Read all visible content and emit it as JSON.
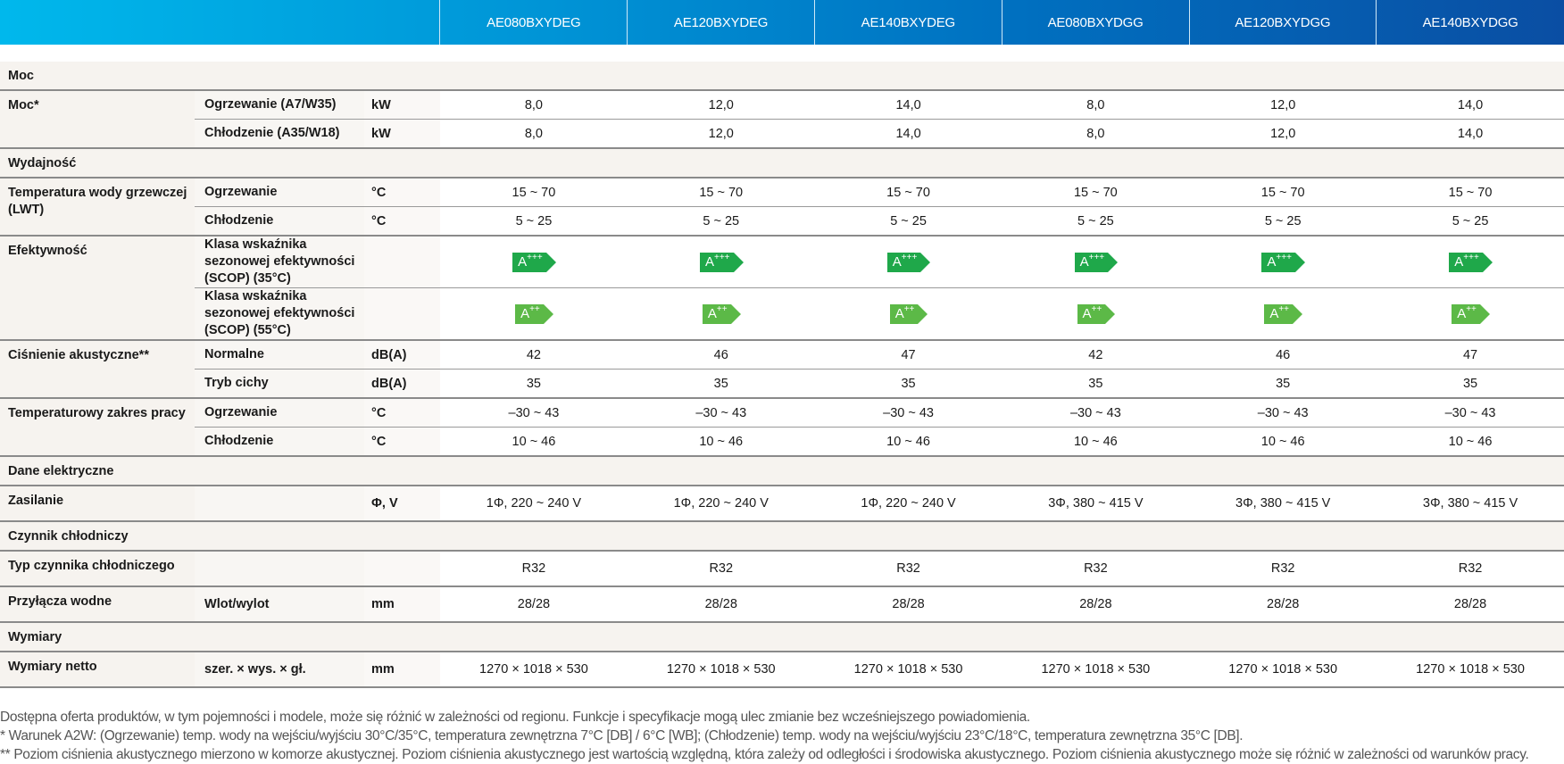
{
  "models": [
    "AE080BXYDEG",
    "AE120BXYDEG",
    "AE140BXYDEG",
    "AE080BXYDGG",
    "AE120BXYDGG",
    "AE140BXYDGG"
  ],
  "colors": {
    "header_start": "#00b8ec",
    "header_end": "#0a4ea3",
    "badge_a3": "#1fa84a",
    "badge_a2": "#5cb947",
    "section_bg": "#f6f3ef"
  },
  "sections": [
    {
      "title": "Moc",
      "groups": [
        {
          "label": "Moc*",
          "rows": [
            {
              "sub": "Ogrzewanie (A7/W35)",
              "unit": "kW",
              "values": [
                "8,0",
                "12,0",
                "14,0",
                "8,0",
                "12,0",
                "14,0"
              ]
            },
            {
              "sub": "Chłodzenie (A35/W18)",
              "unit": "kW",
              "values": [
                "8,0",
                "12,0",
                "14,0",
                "8,0",
                "12,0",
                "14,0"
              ]
            }
          ]
        }
      ]
    },
    {
      "title": "Wydajność",
      "groups": [
        {
          "label": "Temperatura wody grzewczej (LWT)",
          "rows": [
            {
              "sub": "Ogrzewanie",
              "unit": "°C",
              "values": [
                "15 ~ 70",
                "15 ~ 70",
                "15 ~ 70",
                "15 ~ 70",
                "15 ~ 70",
                "15 ~ 70"
              ]
            },
            {
              "sub": "Chłodzenie",
              "unit": "°C",
              "values": [
                "5 ~ 25",
                "5 ~ 25",
                "5 ~ 25",
                "5 ~ 25",
                "5 ~ 25",
                "5 ~ 25"
              ]
            }
          ]
        },
        {
          "label": "Efektywność",
          "rows": [
            {
              "sub": "Klasa wskaźnika sezonowej efektywności (SCOP) (35°C)",
              "unit": "",
              "badge": {
                "class": "A",
                "plus": "+++"
              },
              "values": [
                "A+++",
                "A+++",
                "A+++",
                "A+++",
                "A+++",
                "A+++"
              ]
            },
            {
              "sub": "Klasa wskaźnika sezonowej efektywności (SCOP) (55°C)",
              "unit": "",
              "badge": {
                "class": "A",
                "plus": "++"
              },
              "values": [
                "A++",
                "A++",
                "A++",
                "A++",
                "A++",
                "A++"
              ]
            }
          ]
        },
        {
          "label": "Ciśnienie akustyczne**",
          "rows": [
            {
              "sub": "Normalne",
              "unit": "dB(A)",
              "values": [
                "42",
                "46",
                "47",
                "42",
                "46",
                "47"
              ]
            },
            {
              "sub": "Tryb cichy",
              "unit": "dB(A)",
              "values": [
                "35",
                "35",
                "35",
                "35",
                "35",
                "35"
              ]
            }
          ]
        },
        {
          "label": "Temperaturowy zakres pracy",
          "rows": [
            {
              "sub": "Ogrzewanie",
              "unit": "°C",
              "values": [
                "–30 ~ 43",
                "–30 ~ 43",
                "–30 ~ 43",
                "–30 ~ 43",
                "–30 ~ 43",
                "–30 ~ 43"
              ]
            },
            {
              "sub": "Chłodzenie",
              "unit": "°C",
              "values": [
                "10 ~ 46",
                "10 ~ 46",
                "10 ~ 46",
                "10 ~ 46",
                "10 ~ 46",
                "10 ~ 46"
              ]
            }
          ]
        }
      ]
    },
    {
      "title": "Dane elektryczne",
      "groups": [
        {
          "label": "Zasilanie",
          "rows": [
            {
              "sub": "",
              "unit": "Φ, V",
              "values": [
                "1Φ, 220 ~ 240 V",
                "1Φ, 220 ~ 240 V",
                "1Φ, 220 ~ 240 V",
                "3Φ, 380 ~ 415 V",
                "3Φ, 380 ~ 415 V",
                "3Φ, 380 ~ 415 V"
              ]
            }
          ]
        }
      ]
    },
    {
      "title": "Czynnik chłodniczy",
      "groups": [
        {
          "label": "Typ czynnika chłodniczego",
          "rows": [
            {
              "sub": "",
              "unit": "",
              "values": [
                "R32",
                "R32",
                "R32",
                "R32",
                "R32",
                "R32"
              ]
            }
          ]
        },
        {
          "label": "Przyłącza wodne",
          "rows": [
            {
              "sub": "Wlot/wylot",
              "unit": "mm",
              "values": [
                "28/28",
                "28/28",
                "28/28",
                "28/28",
                "28/28",
                "28/28"
              ]
            }
          ]
        }
      ]
    },
    {
      "title": "Wymiary",
      "groups": [
        {
          "label": "Wymiary netto",
          "rows": [
            {
              "sub": "szer. × wys. × gł.",
              "unit": "mm",
              "values": [
                "1270 × 1018 × 530",
                "1270 × 1018 × 530",
                "1270 × 1018 × 530",
                "1270 × 1018 × 530",
                "1270 × 1018 × 530",
                "1270 × 1018 × 530"
              ]
            }
          ]
        }
      ]
    }
  ],
  "notes": [
    "Dostępna oferta produktów, w tym pojemności i modele, może się różnić w zależności od regionu. Funkcje i specyfikacje mogą ulec zmianie bez wcześniejszego powiadomienia.",
    "* Warunek A2W: (Ogrzewanie) temp. wody na wejściu/wyjściu 30°C/35°C, temperatura zewnętrzna 7°C [DB] / 6°C [WB]; (Chłodzenie) temp. wody na wejściu/wyjściu 23°C/18°C, temperatura zewnętrzna 35°C [DB].",
    "** Poziom ciśnienia akustycznego mierzono w komorze akustycznej. Poziom ciśnienia akustycznego jest wartością względną, która zależy od odległości i środowiska akustycznego. Poziom ciśnienia akustycznego może się różnić w zależności od warunków pracy."
  ]
}
